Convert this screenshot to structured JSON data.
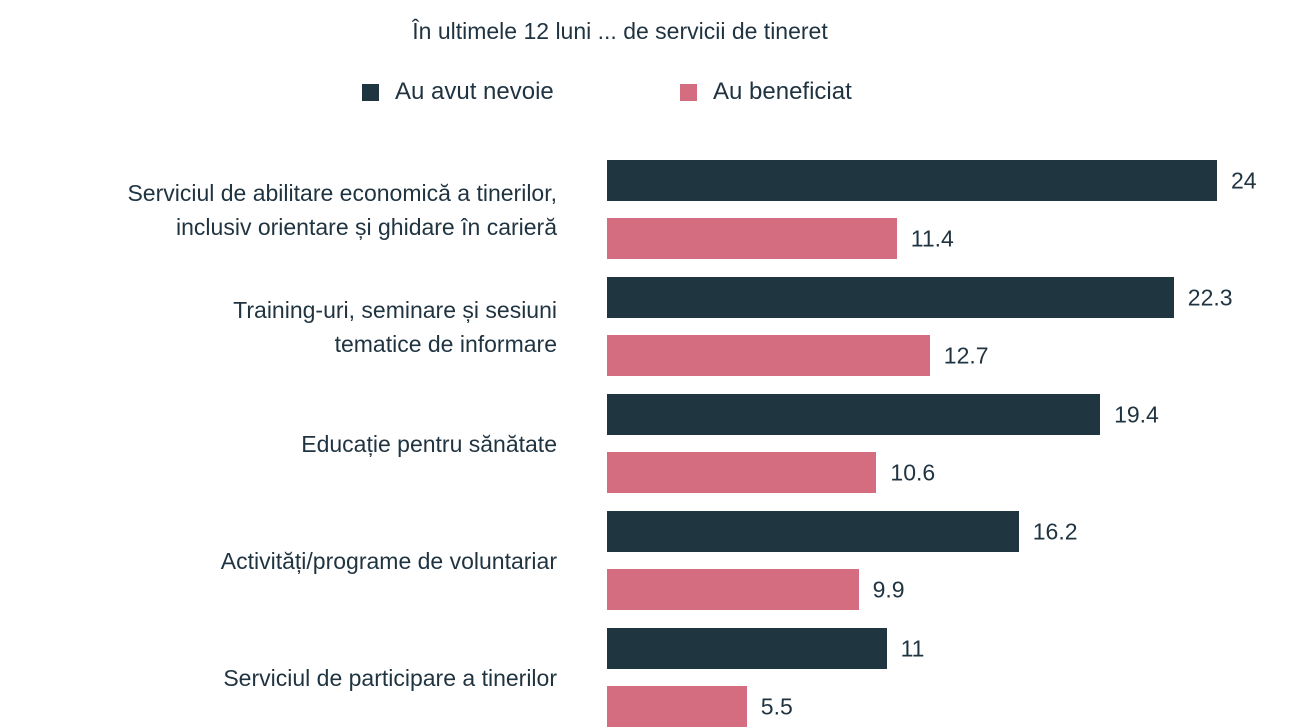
{
  "chart_data": {
    "type": "bar",
    "orientation": "horizontal",
    "title": "În ultimele 12 luni ... de servicii de tineret",
    "categories": [
      "Serviciul de abilitare economică a tinerilor,\ninclusiv orientare și ghidare în carieră",
      "Training-uri, seminare și sesiuni\ntematice de informare",
      "Educație pentru sănătate",
      "Activități/programe de voluntariar",
      "Serviciul de participare a tinerilor"
    ],
    "series": [
      {
        "name": "Au avut nevoie",
        "color": "#1f3540",
        "values": [
          24,
          22.3,
          19.4,
          16.2,
          11
        ]
      },
      {
        "name": "Au beneficiat",
        "color": "#d46d80",
        "values": [
          11.4,
          12.7,
          10.6,
          9.9,
          5.5
        ]
      }
    ]
  }
}
